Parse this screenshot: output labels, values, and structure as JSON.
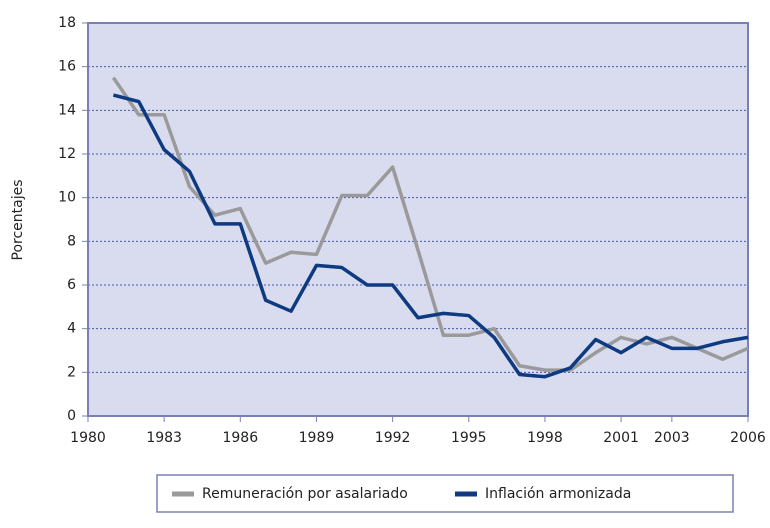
{
  "chart_data": {
    "type": "line",
    "y_label": "Porcentajes",
    "x": [
      1981,
      1982,
      1983,
      1984,
      1985,
      1986,
      1987,
      1988,
      1989,
      1990,
      1991,
      1992,
      1993,
      1994,
      1995,
      1996,
      1997,
      1998,
      1999,
      2000,
      2001,
      2002,
      2003,
      2004,
      2005,
      2006
    ],
    "series": [
      {
        "name": "Remuneración por asalariado",
        "color": "#9a9a9a",
        "values": [
          15.5,
          13.8,
          13.8,
          10.5,
          9.2,
          9.5,
          7.0,
          7.5,
          7.4,
          10.1,
          10.1,
          11.4,
          7.6,
          3.7,
          3.7,
          4.0,
          2.3,
          2.1,
          2.1,
          2.9,
          3.6,
          3.3,
          3.6,
          3.1,
          2.6,
          3.1
        ]
      },
      {
        "name": "Inflación armonizada",
        "color": "#0d3a80",
        "values": [
          14.7,
          14.4,
          12.2,
          11.2,
          8.8,
          8.8,
          5.3,
          4.8,
          6.9,
          6.8,
          6.0,
          6.0,
          4.5,
          4.7,
          4.6,
          3.6,
          1.9,
          1.8,
          2.2,
          3.5,
          2.9,
          3.6,
          3.1,
          3.1,
          3.4,
          3.6
        ]
      }
    ],
    "xlim": [
      1980,
      2006
    ],
    "xticks": [
      1980,
      1983,
      1986,
      1989,
      1992,
      1995,
      1998,
      2001,
      2003,
      2006
    ],
    "ylim": [
      0,
      18
    ],
    "yticks": [
      0,
      2,
      4,
      6,
      8,
      10,
      12,
      14,
      16,
      18
    ],
    "grid": true,
    "legend": "bottom",
    "background": "#d9dcee"
  }
}
